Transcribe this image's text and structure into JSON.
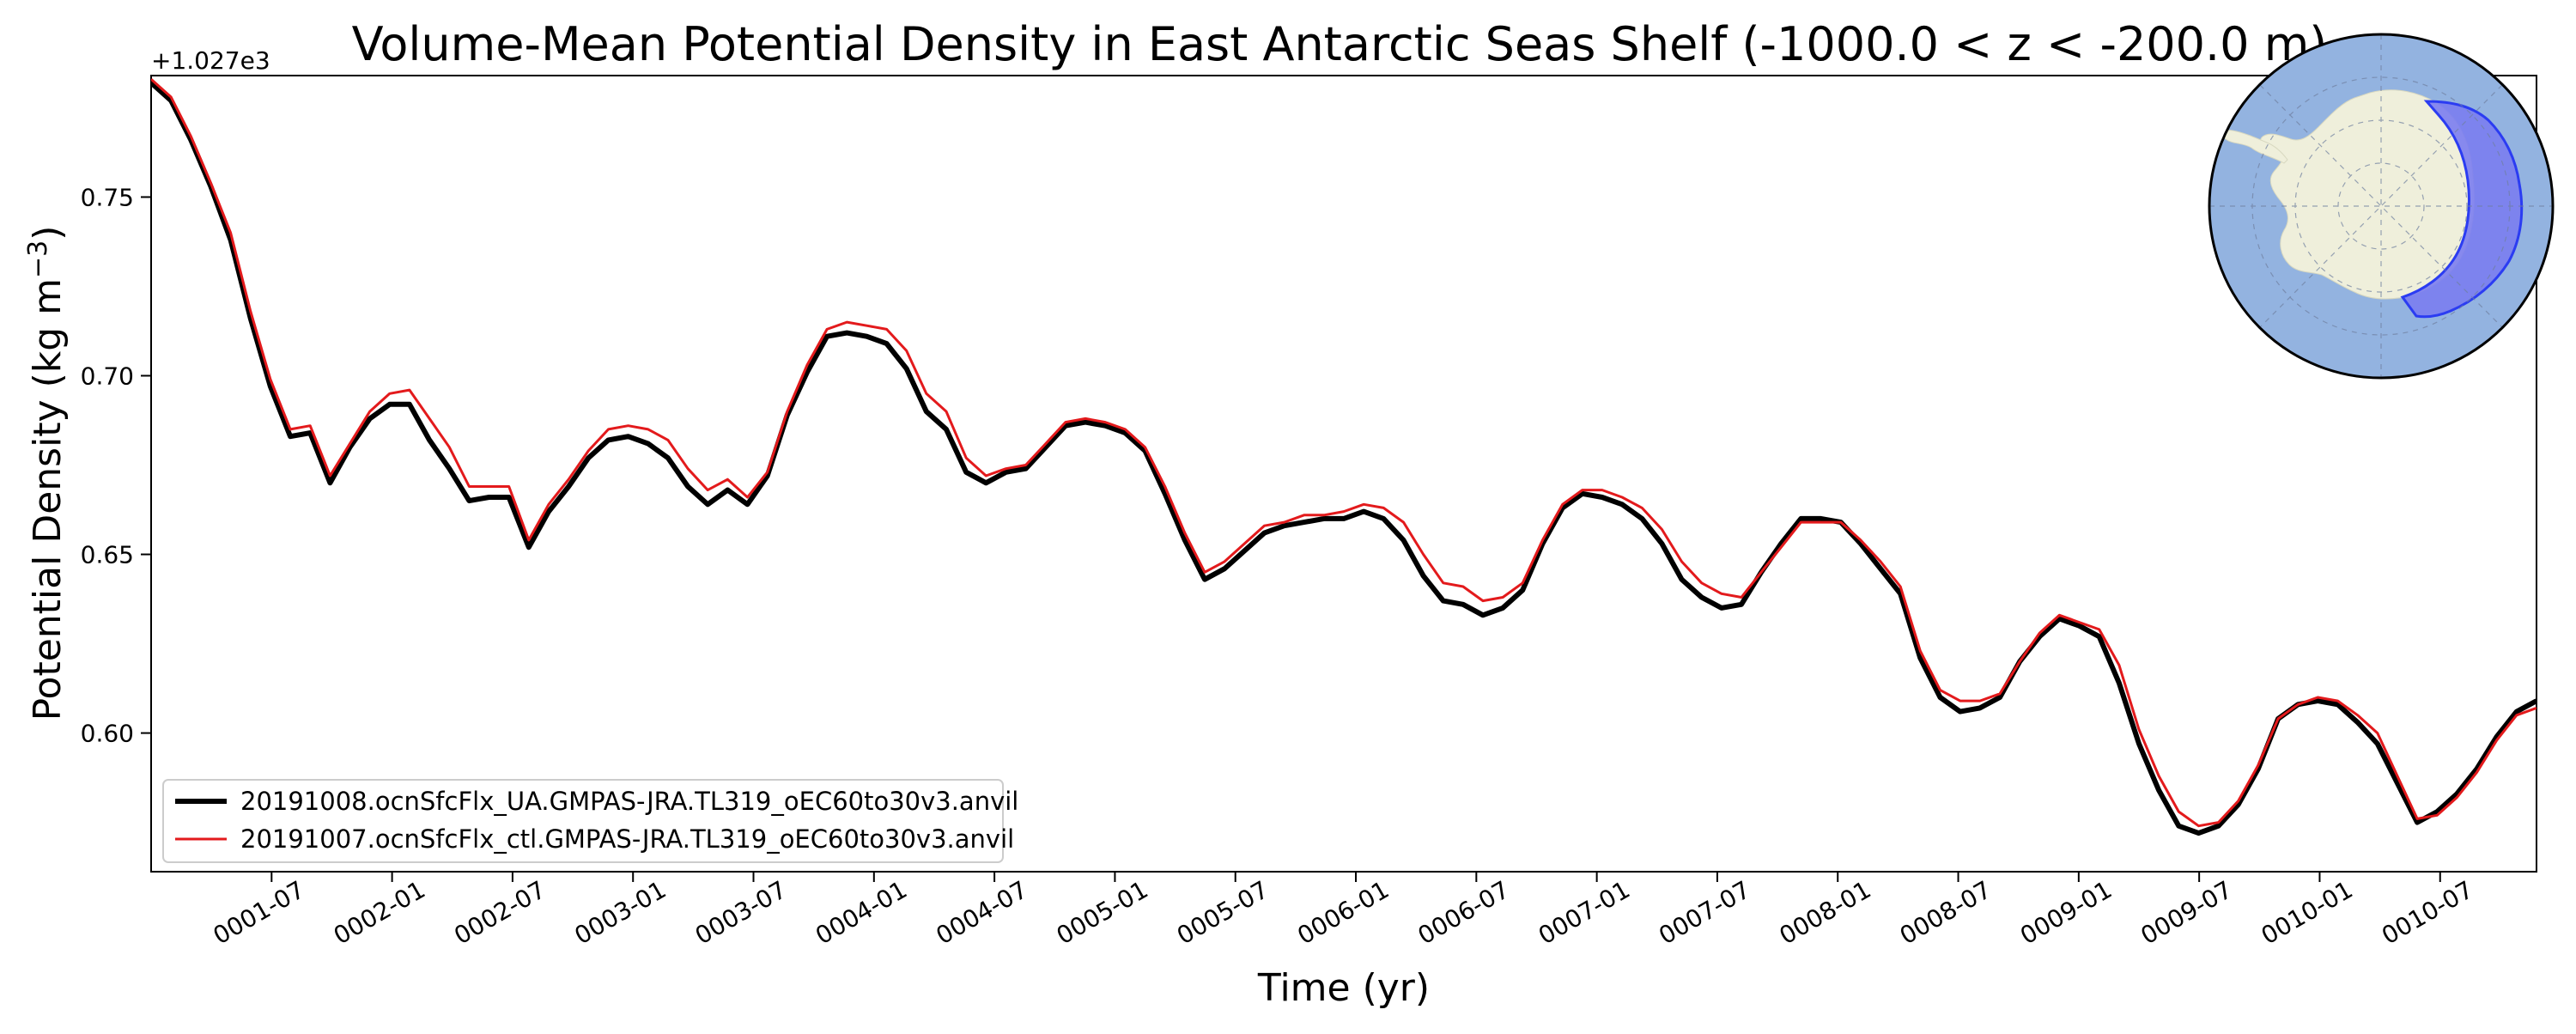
{
  "chart_data": {
    "type": "line",
    "title": "Volume-Mean Potential Density in East Antarctic Seas Shelf (-1000.0 < z < -200.0 m)",
    "xlabel": "Time (yr)",
    "ylabel_main": "Potential Density (kg m",
    "ylabel_sup": "−3",
    "ylabel_close": ")",
    "y_offset_text": "+1.027e3",
    "xlim": [
      0.0,
      9.9
    ],
    "ylim": [
      0.5612,
      0.784
    ],
    "x_unit": "years since model start (monthly samples)",
    "x_ticks": [
      {
        "label": "0001-07",
        "value": 0.5
      },
      {
        "label": "0002-01",
        "value": 1.0
      },
      {
        "label": "0002-07",
        "value": 1.5
      },
      {
        "label": "0003-01",
        "value": 2.0
      },
      {
        "label": "0003-07",
        "value": 2.5
      },
      {
        "label": "0004-01",
        "value": 3.0
      },
      {
        "label": "0004-07",
        "value": 3.5
      },
      {
        "label": "0005-01",
        "value": 4.0
      },
      {
        "label": "0005-07",
        "value": 4.5
      },
      {
        "label": "0006-01",
        "value": 5.0
      },
      {
        "label": "0006-07",
        "value": 5.5
      },
      {
        "label": "0007-01",
        "value": 6.0
      },
      {
        "label": "0007-07",
        "value": 6.5
      },
      {
        "label": "0008-01",
        "value": 7.0
      },
      {
        "label": "0008-07",
        "value": 7.5
      },
      {
        "label": "0009-01",
        "value": 8.0
      },
      {
        "label": "0009-07",
        "value": 8.5
      },
      {
        "label": "0010-01",
        "value": 9.0
      },
      {
        "label": "0010-07",
        "value": 9.5
      }
    ],
    "y_ticks": [
      {
        "label": "0.60",
        "value": 0.6
      },
      {
        "label": "0.65",
        "value": 0.65
      },
      {
        "label": "0.70",
        "value": 0.7
      },
      {
        "label": "0.75",
        "value": 0.75
      }
    ],
    "legend_position": "lower-left",
    "series": [
      {
        "name": "20191008.ocnSfcFlx_UA.GMPAS-JRA.TL319_oEC60to30v3.anvil",
        "color": "#000000",
        "style": "thick",
        "values": [
          0.782,
          0.777,
          0.766,
          0.753,
          0.738,
          0.716,
          0.697,
          0.683,
          0.684,
          0.67,
          0.68,
          0.688,
          0.692,
          0.692,
          0.682,
          0.674,
          0.665,
          0.666,
          0.666,
          0.652,
          0.662,
          0.669,
          0.677,
          0.682,
          0.683,
          0.681,
          0.677,
          0.669,
          0.664,
          0.668,
          0.664,
          0.672,
          0.689,
          0.701,
          0.711,
          0.712,
          0.711,
          0.709,
          0.702,
          0.69,
          0.685,
          0.673,
          0.67,
          0.673,
          0.674,
          0.68,
          0.686,
          0.687,
          0.686,
          0.684,
          0.679,
          0.667,
          0.654,
          0.643,
          0.646,
          0.651,
          0.656,
          0.658,
          0.659,
          0.66,
          0.66,
          0.662,
          0.66,
          0.654,
          0.644,
          0.637,
          0.636,
          0.633,
          0.635,
          0.64,
          0.653,
          0.663,
          0.667,
          0.666,
          0.664,
          0.66,
          0.653,
          0.643,
          0.638,
          0.635,
          0.636,
          0.645,
          0.653,
          0.66,
          0.66,
          0.659,
          0.653,
          0.646,
          0.639,
          0.621,
          0.61,
          0.606,
          0.607,
          0.61,
          0.62,
          0.627,
          0.632,
          0.63,
          0.627,
          0.614,
          0.597,
          0.584,
          0.574,
          0.572,
          0.574,
          0.58,
          0.59,
          0.604,
          0.608,
          0.609,
          0.608,
          0.603,
          0.597,
          0.586,
          0.575,
          0.578,
          0.583,
          0.59,
          0.599,
          0.606,
          0.609
        ]
      },
      {
        "name": "20191007.ocnSfcFlx_ctl.GMPAS-JRA.TL319_oEC60to30v3.anvil",
        "color": "#e31a1c",
        "style": "thin",
        "values": [
          0.783,
          0.778,
          0.767,
          0.754,
          0.74,
          0.718,
          0.699,
          0.685,
          0.686,
          0.672,
          0.681,
          0.69,
          0.695,
          0.696,
          0.688,
          0.68,
          0.669,
          0.669,
          0.669,
          0.654,
          0.664,
          0.671,
          0.679,
          0.685,
          0.686,
          0.685,
          0.682,
          0.674,
          0.668,
          0.671,
          0.666,
          0.673,
          0.69,
          0.703,
          0.713,
          0.715,
          0.714,
          0.713,
          0.707,
          0.695,
          0.69,
          0.677,
          0.672,
          0.674,
          0.675,
          0.681,
          0.687,
          0.688,
          0.687,
          0.685,
          0.68,
          0.669,
          0.656,
          0.645,
          0.648,
          0.653,
          0.658,
          0.659,
          0.661,
          0.661,
          0.662,
          0.664,
          0.663,
          0.659,
          0.65,
          0.642,
          0.641,
          0.637,
          0.638,
          0.642,
          0.654,
          0.664,
          0.668,
          0.668,
          0.666,
          0.663,
          0.657,
          0.648,
          0.642,
          0.639,
          0.638,
          0.645,
          0.652,
          0.659,
          0.659,
          0.659,
          0.654,
          0.648,
          0.641,
          0.623,
          0.612,
          0.609,
          0.609,
          0.611,
          0.62,
          0.628,
          0.633,
          0.631,
          0.629,
          0.619,
          0.601,
          0.588,
          0.578,
          0.574,
          0.575,
          0.581,
          0.591,
          0.604,
          0.608,
          0.61,
          0.609,
          0.605,
          0.6,
          0.588,
          0.576,
          0.577,
          0.582,
          0.589,
          0.598,
          0.605,
          0.607
        ]
      }
    ]
  },
  "inset_map": {
    "description_icon": "south-polar-map-icon",
    "ocean_color": "#93b3e0",
    "land_color": "#efefdb",
    "region_color": "#7b7df0",
    "region_edge_color": "#2b3cf2"
  }
}
